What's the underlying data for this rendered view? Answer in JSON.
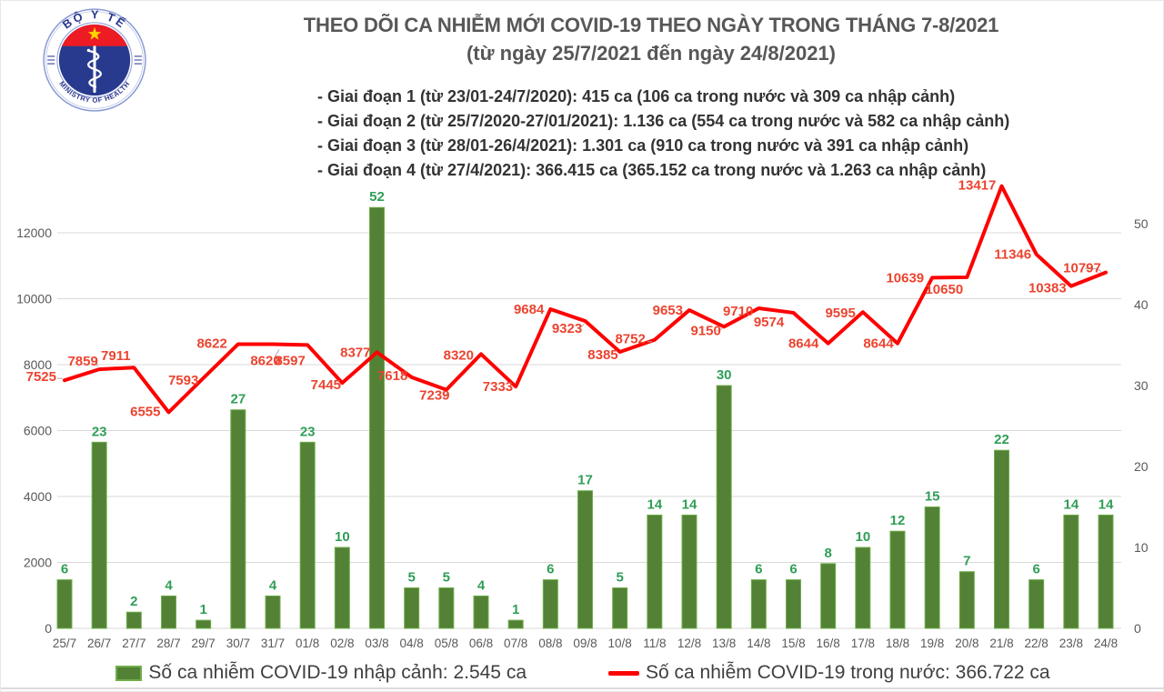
{
  "logo": {
    "top_text": "BỘ Y TẾ",
    "bottom_text": "MINISTRY OF HEALTH",
    "colors": {
      "ring": "#27348b",
      "disc_blue": "#283a8e",
      "band_red": "#ed1c24",
      "star_yellow": "#ffd400"
    }
  },
  "header": {
    "title": "THEO DÕI CA NHIỄM MỚI COVID-19 THEO NGÀY TRONG THÁNG 7-8/2021",
    "subtitle": "(từ ngày 25/7/2021 đến ngày 24/8/2021)",
    "bullets": [
      "- Giai đoạn 1 (từ 23/01-24/7/2020): 415 ca (106 ca trong nước và 309 ca nhập cảnh)",
      "- Giai đoạn 2 (từ 25/7/2020-27/01/2021): 1.136 ca (554 ca trong nước và 582 ca nhập cảnh)",
      "- Giai đoạn 3 (từ 28/01-26/4/2021): 1.301 ca (910 ca trong nước và 391 ca nhập cảnh)",
      "- Giai đoạn 4 (từ 27/4/2021): 366.415 ca (365.152 ca trong nước và 1.263 ca nhập cảnh)"
    ]
  },
  "chart_data": {
    "type": "bar+line",
    "categories": [
      "25/7",
      "26/7",
      "27/7",
      "28/7",
      "29/7",
      "30/7",
      "31/7",
      "01/8",
      "02/8",
      "03/8",
      "04/8",
      "05/8",
      "06/8",
      "07/8",
      "08/8",
      "09/8",
      "10/8",
      "11/8",
      "12/8",
      "13/8",
      "14/8",
      "15/8",
      "16/8",
      "17/8",
      "18/8",
      "19/8",
      "20/8",
      "21/8",
      "22/8",
      "23/8",
      "24/8"
    ],
    "series": [
      {
        "name": "Số ca nhiễm COVID-19 nhập cảnh",
        "type": "bar",
        "axis": "right",
        "color": "#538135",
        "border": "#6fae4b",
        "values": [
          6,
          23,
          2,
          4,
          1,
          27,
          4,
          23,
          10,
          52,
          5,
          5,
          4,
          1,
          6,
          17,
          5,
          14,
          14,
          30,
          6,
          6,
          8,
          10,
          12,
          15,
          7,
          22,
          6,
          14,
          14
        ]
      },
      {
        "name": "Số ca nhiễm COVID-19 trong nước",
        "type": "line",
        "axis": "left",
        "color": "#fe0000",
        "values": [
          7525,
          7859,
          7911,
          6555,
          7593,
          8622,
          8620,
          8597,
          7445,
          8377,
          7618,
          7239,
          8320,
          7333,
          9684,
          9323,
          8385,
          8752,
          9653,
          9150,
          9710,
          9574,
          8644,
          9595,
          8644,
          10639,
          10650,
          13417,
          11346,
          10383,
          10797
        ]
      }
    ],
    "left_axis": {
      "min": 0,
      "max": 12000,
      "ticks": [
        0,
        2000,
        4000,
        6000,
        8000,
        10000,
        12000
      ]
    },
    "right_axis": {
      "min": 0,
      "max": 50,
      "ticks": [
        0,
        10,
        20,
        30,
        40,
        50
      ]
    },
    "grid": true,
    "legend_position": "bottom",
    "label_offsets": [
      [
        -9,
        1,
        "e"
      ],
      [
        -18,
        -4,
        "m"
      ],
      [
        -20,
        -8,
        "m"
      ],
      [
        -9,
        4,
        "e"
      ],
      [
        -22,
        7,
        "m"
      ],
      [
        -12,
        4,
        "e"
      ],
      [
        -8,
        23,
        "m"
      ],
      [
        -19,
        22,
        "m"
      ],
      [
        -18,
        7,
        "m"
      ],
      [
        -7,
        5,
        "e"
      ],
      [
        -21,
        3,
        "m"
      ],
      [
        -13,
        11,
        "m"
      ],
      [
        -8,
        6,
        "e"
      ],
      [
        -3,
        5,
        "e"
      ],
      [
        -7,
        5,
        "e"
      ],
      [
        -20,
        13,
        "m"
      ],
      [
        -2,
        8,
        "e"
      ],
      [
        -10,
        4,
        "e"
      ],
      [
        -7,
        5,
        "e"
      ],
      [
        -20,
        9,
        "m"
      ],
      [
        -6,
        8,
        "e"
      ],
      [
        -27,
        15,
        "m"
      ],
      [
        -27,
        5,
        "m"
      ],
      [
        -8,
        6,
        "e"
      ],
      [
        -21,
        5,
        "m"
      ],
      [
        -9,
        5,
        "e"
      ],
      [
        -25,
        18,
        "m"
      ],
      [
        -27,
        4,
        "m"
      ],
      [
        -26,
        5,
        "m"
      ],
      [
        -26,
        7,
        "m"
      ],
      [
        -26,
        0,
        "m"
      ]
    ],
    "leaders": {
      "0": [
        [
          -8,
          -2
        ],
        [
          -2,
          -2
        ]
      ],
      "1": [
        [
          -8,
          -8
        ],
        [
          -3,
          -8
        ],
        [
          -2,
          -3
        ]
      ],
      "6": [
        [
          2,
          14
        ],
        [
          7,
          6
        ]
      ],
      "11": [
        [
          -3,
          8
        ],
        [
          2,
          3
        ]
      ],
      "15": [
        [
          -7,
          9
        ],
        [
          -1,
          3
        ]
      ],
      "17": [
        [
          -8,
          2
        ],
        [
          -3,
          2
        ]
      ],
      "19": [
        [
          -8,
          5
        ],
        [
          -2,
          2
        ]
      ],
      "30": [
        [
          -23,
          -4
        ],
        [
          -9,
          -4
        ],
        [
          -5,
          -1
        ]
      ]
    }
  },
  "legend": {
    "bar_label": "Số ca nhiễm COVID-19 nhập cảnh: 2.545 ca",
    "line_label": "Số ca nhiễm COVID-19 trong nước: 366.722 ca"
  }
}
